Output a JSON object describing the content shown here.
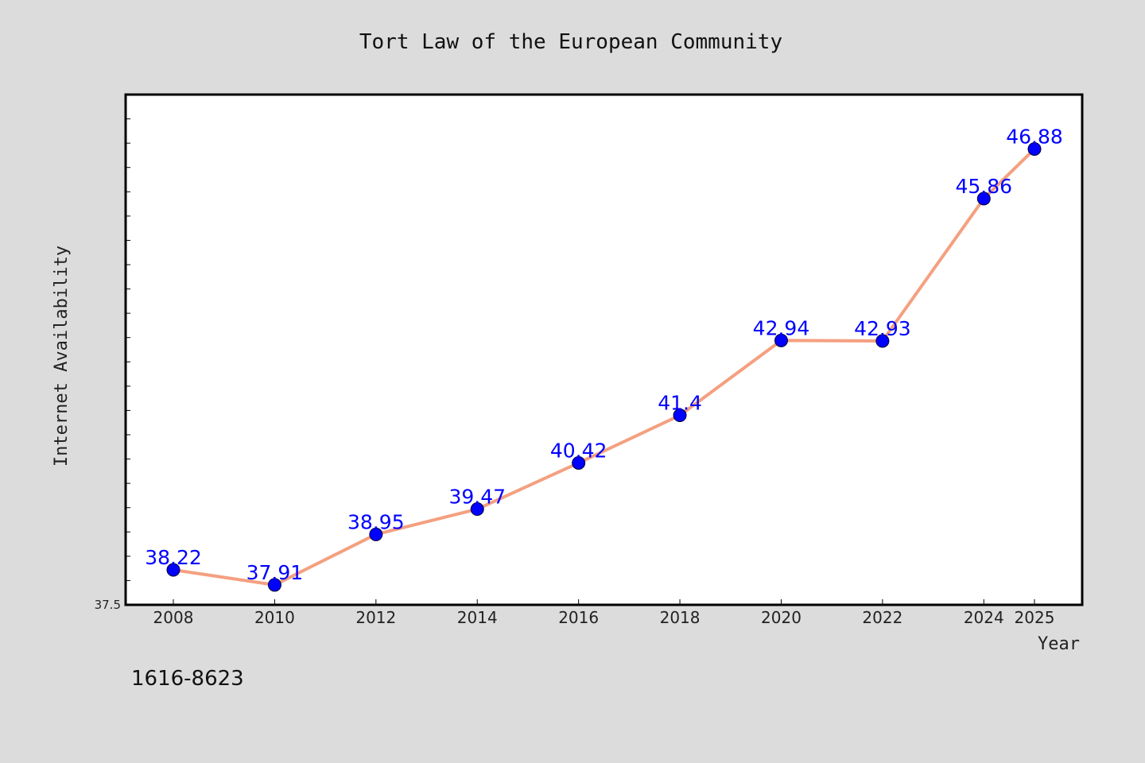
{
  "chart_data": {
    "type": "line",
    "title": "Tort Law of the European Community",
    "xlabel": "Year",
    "ylabel": "Internet Availability",
    "x": [
      "2008",
      "2010",
      "2012",
      "2014",
      "2016",
      "2018",
      "2020",
      "2022",
      "2024",
      "2025"
    ],
    "series": [
      {
        "values": [
          38.22,
          37.91,
          38.95,
          39.47,
          40.42,
          41.4,
          42.94,
          42.93,
          45.86,
          46.88
        ],
        "data_labels": [
          "38.22",
          "37.91",
          "38.95",
          "39.47",
          "40.42",
          "41.4",
          "42.94",
          "42.93",
          "45.86",
          "46.88"
        ],
        "line_color": "#f4a080",
        "marker_color": "#0000ff"
      }
    ],
    "ylim": [
      37.5,
      48.0
    ],
    "y_tick_labels": [
      "37.5"
    ],
    "grid": false,
    "legend": "none"
  },
  "footer": {
    "code": "1616-8623"
  },
  "colors": {
    "background": "#dcdcdc",
    "plot_background": "#ffffff",
    "line": "#f4a080",
    "marker": "#0000ff",
    "data_label": "#0000ff"
  }
}
